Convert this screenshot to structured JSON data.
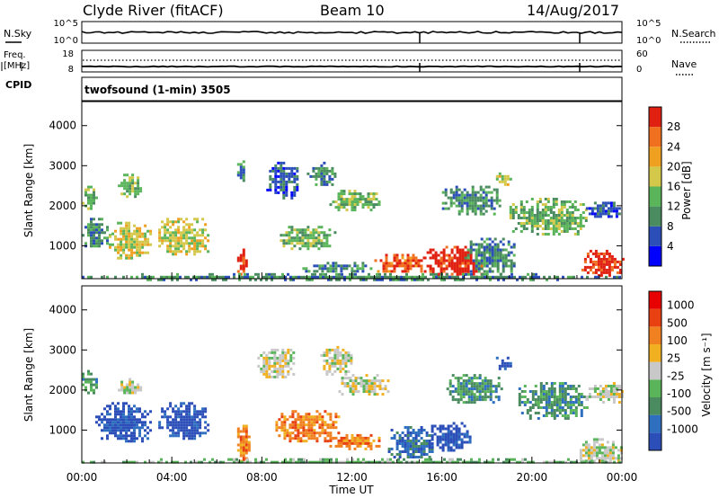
{
  "header": {
    "station": "Clyde River (fitACF)",
    "beam": "Beam 10",
    "date": "14/Aug/2017"
  },
  "noise_panel": {
    "left_label": "N.Sky",
    "left_ticks": [
      "10^5",
      "10^0"
    ],
    "right_label": "N.Search",
    "right_ticks": [
      "10^5",
      "10^0"
    ],
    "right_line_style": "dotted"
  },
  "freq_panel": {
    "left_label_1": "Freq.",
    "left_label_2": "[MHz]",
    "left_ticks": [
      "18",
      "8"
    ],
    "right_label": "Nave",
    "right_ticks": [
      "60",
      "0"
    ],
    "right_line_style": "dotted"
  },
  "cpid_panel": {
    "label": "CPID",
    "program": "twofsound (1-min) 3505"
  },
  "chart_data": [
    {
      "type": "heatmap",
      "name": "power",
      "ylabel": "Slant Range [km]",
      "yticks": [
        "1000",
        "2000",
        "3000",
        "4000"
      ],
      "ylim": [
        180,
        4600
      ],
      "xlim_hours": [
        0,
        24
      ],
      "colorbar_label": "Power [dB]",
      "colorbar_ticks": [
        "4",
        "8",
        "12",
        "16",
        "20",
        "24",
        "28"
      ],
      "colorbar_colors": [
        "#0000ff",
        "#2b4eb8",
        "#4a8c60",
        "#5ab45a",
        "#d4c84a",
        "#f0a020",
        "#f07020",
        "#e02010"
      ],
      "regions": [
        {
          "t0": 0.0,
          "t1": 0.6,
          "r0": 1900,
          "r1": 2500,
          "level": 3
        },
        {
          "t0": 0.0,
          "t1": 1.2,
          "r0": 1000,
          "r1": 1700,
          "level": 2
        },
        {
          "t0": 1.2,
          "t1": 3.0,
          "r0": 700,
          "r1": 1600,
          "level": 4
        },
        {
          "t0": 1.6,
          "t1": 2.6,
          "r0": 2200,
          "r1": 2800,
          "level": 3
        },
        {
          "t0": 3.4,
          "t1": 5.6,
          "r0": 800,
          "r1": 1700,
          "level": 4
        },
        {
          "t0": 6.9,
          "t1": 7.3,
          "r0": 300,
          "r1": 1000,
          "level": 7
        },
        {
          "t0": 6.9,
          "t1": 7.2,
          "r0": 2600,
          "r1": 3200,
          "level": 2
        },
        {
          "t0": 8.2,
          "t1": 9.6,
          "r0": 2200,
          "r1": 3100,
          "level": 1
        },
        {
          "t0": 8.8,
          "t1": 11.2,
          "r0": 900,
          "r1": 1500,
          "level": 3
        },
        {
          "t0": 10.0,
          "t1": 11.2,
          "r0": 2500,
          "r1": 3100,
          "level": 2
        },
        {
          "t0": 11.0,
          "t1": 13.2,
          "r0": 1900,
          "r1": 2400,
          "level": 3
        },
        {
          "t0": 9.8,
          "t1": 12.8,
          "r0": 350,
          "r1": 600,
          "level": 2
        },
        {
          "t0": 13.0,
          "t1": 15.2,
          "r0": 350,
          "r1": 800,
          "level": 6
        },
        {
          "t0": 15.2,
          "t1": 17.8,
          "r0": 250,
          "r1": 1000,
          "level": 7
        },
        {
          "t0": 17.0,
          "t1": 19.2,
          "r0": 300,
          "r1": 1200,
          "level": 2
        },
        {
          "t0": 18.4,
          "t1": 19.0,
          "r0": 2500,
          "r1": 2900,
          "level": 4
        },
        {
          "t0": 16.0,
          "t1": 18.6,
          "r0": 1800,
          "r1": 2500,
          "level": 2
        },
        {
          "t0": 19.0,
          "t1": 22.4,
          "r0": 1300,
          "r1": 2200,
          "level": 3
        },
        {
          "t0": 22.4,
          "t1": 24.0,
          "r0": 1700,
          "r1": 2100,
          "level": 1
        },
        {
          "t0": 22.2,
          "t1": 24.0,
          "r0": 250,
          "r1": 900,
          "level": 7
        },
        {
          "t0": 0.0,
          "t1": 24.0,
          "r0": 180,
          "r1": 320,
          "level": 2
        }
      ]
    },
    {
      "type": "heatmap",
      "name": "velocity",
      "ylabel": "Slant Range [km]",
      "yticks": [
        "1000",
        "2000",
        "3000",
        "4000"
      ],
      "ylim": [
        180,
        4600
      ],
      "xlim_hours": [
        0,
        24
      ],
      "colorbar_label": "Velocity [m s⁻¹]",
      "colorbar_ticks": [
        "1000",
        "500",
        "100",
        "25",
        "-25",
        "-100",
        "-500",
        "-1000"
      ],
      "colorbar_colors": [
        "#2b4eb8",
        "#2f6fc0",
        "#4a8c60",
        "#5ab45a",
        "#c8c8c8",
        "#f0b020",
        "#f08020",
        "#e84010",
        "#e80000"
      ],
      "regions": [
        {
          "t0": 0.0,
          "t1": 0.6,
          "r0": 1900,
          "r1": 2500,
          "level": 2
        },
        {
          "t0": 0.6,
          "t1": 3.0,
          "r0": 700,
          "r1": 1700,
          "level": 0
        },
        {
          "t0": 1.6,
          "t1": 2.6,
          "r0": 1900,
          "r1": 2300,
          "level": 4
        },
        {
          "t0": 3.4,
          "t1": 5.6,
          "r0": 800,
          "r1": 1700,
          "level": 0
        },
        {
          "t0": 6.9,
          "t1": 7.4,
          "r0": 250,
          "r1": 1200,
          "level": 6
        },
        {
          "t0": 7.8,
          "t1": 9.4,
          "r0": 2300,
          "r1": 3100,
          "level": 4
        },
        {
          "t0": 8.6,
          "t1": 11.4,
          "r0": 700,
          "r1": 1500,
          "level": 6
        },
        {
          "t0": 10.6,
          "t1": 12.0,
          "r0": 2400,
          "r1": 3100,
          "level": 4
        },
        {
          "t0": 11.4,
          "t1": 13.6,
          "r0": 1900,
          "r1": 2400,
          "level": 4
        },
        {
          "t0": 11.0,
          "t1": 13.2,
          "r0": 550,
          "r1": 900,
          "level": 6
        },
        {
          "t0": 13.6,
          "t1": 15.6,
          "r0": 300,
          "r1": 1100,
          "level": 1
        },
        {
          "t0": 15.4,
          "t1": 17.2,
          "r0": 500,
          "r1": 1200,
          "level": 0
        },
        {
          "t0": 18.4,
          "t1": 19.0,
          "r0": 2500,
          "r1": 2900,
          "level": 0
        },
        {
          "t0": 16.2,
          "t1": 18.6,
          "r0": 1700,
          "r1": 2400,
          "level": 2
        },
        {
          "t0": 19.4,
          "t1": 22.4,
          "r0": 1300,
          "r1": 2200,
          "level": 2
        },
        {
          "t0": 22.4,
          "t1": 24.0,
          "r0": 1700,
          "r1": 2200,
          "level": 4
        },
        {
          "t0": 22.0,
          "t1": 24.0,
          "r0": 200,
          "r1": 800,
          "level": 4
        },
        {
          "t0": 0.0,
          "t1": 24.0,
          "r0": 180,
          "r1": 300,
          "level": 3
        }
      ]
    }
  ],
  "x_axis": {
    "ticks": [
      "00:00",
      "04:00",
      "08:00",
      "12:00",
      "16:00",
      "20:00",
      "00:00"
    ],
    "label": "Time UT"
  }
}
